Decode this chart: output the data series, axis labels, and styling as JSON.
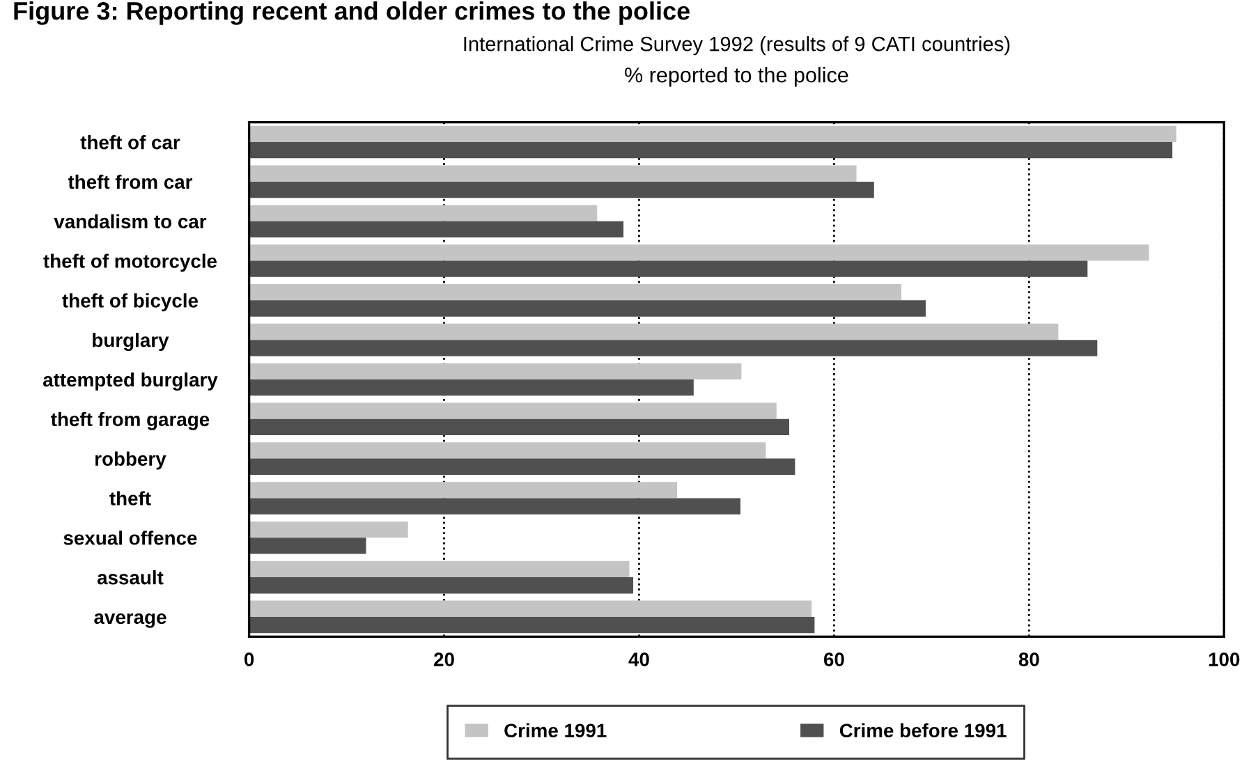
{
  "chart_data": {
    "type": "bar",
    "orientation": "horizontal",
    "title": "International Crime Survey 1992 (results of 9 CATI countries)",
    "subtitle": "% reported to the police",
    "annotations": [
      "Figure 3: Reporting recent and older crimes to the police"
    ],
    "categories": [
      "theft of car",
      "theft from car",
      "vandalism to car",
      "theft of motorcycle",
      "theft of bicycle",
      "burglary",
      "attempted burglary",
      "theft from garage",
      "robbery",
      "theft",
      "sexual offence",
      "assault",
      "average"
    ],
    "series": [
      {
        "name": "Crime 1991",
        "color": "#c4c4c4",
        "values": [
          95.1,
          62.3,
          35.7,
          92.3,
          66.9,
          83.0,
          50.5,
          54.1,
          53.0,
          43.9,
          16.3,
          39.0,
          57.7
        ]
      },
      {
        "name": "Crime before 1991",
        "color": "#505050",
        "values": [
          94.7,
          64.1,
          38.4,
          86.0,
          69.4,
          87.0,
          45.6,
          55.4,
          56.0,
          50.4,
          12.0,
          39.4,
          58.0
        ]
      }
    ],
    "xlim": [
      0,
      100
    ],
    "xticks": [
      0,
      20,
      40,
      60,
      80,
      100
    ],
    "grid": "x",
    "legend": "bottom"
  }
}
